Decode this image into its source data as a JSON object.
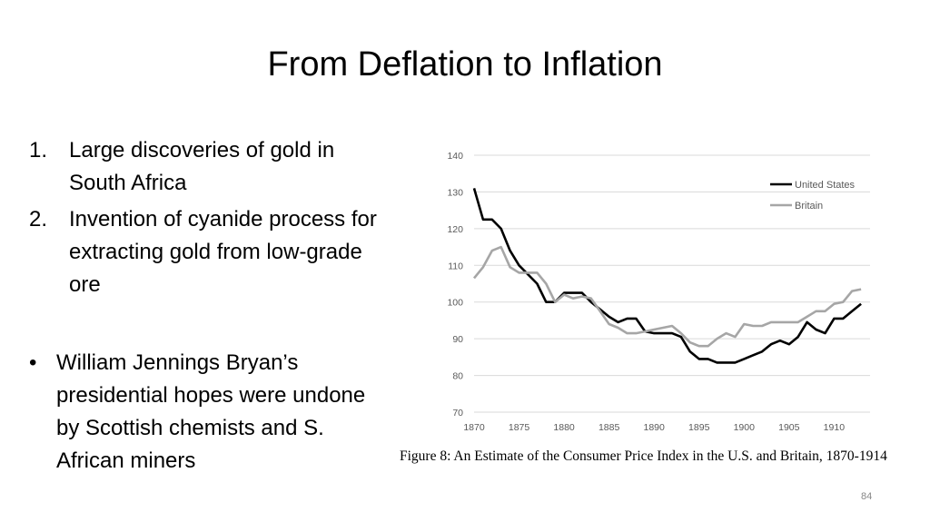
{
  "slide": {
    "title": "From Deflation to Inflation",
    "list": [
      {
        "num": "1.",
        "text": "Large discoveries of gold in South Africa"
      },
      {
        "num": "2.",
        "text": "Invention of cyanide process for extracting gold from low-grade ore"
      }
    ],
    "bullet": {
      "symbol": "•",
      "text": "William Jennings Bryan’s presidential hopes were undone by Scottish chemists and S. African miners"
    },
    "caption": "Figure 8:  An Estimate of the Consumer Price Index in the U.S. and Britain, 1870-1914",
    "page_number": "84"
  },
  "chart_data": {
    "type": "line",
    "title": "",
    "xlabel": "",
    "ylabel": "",
    "xlim": [
      1870,
      1914
    ],
    "ylim": [
      70,
      140
    ],
    "x_ticks": [
      1870,
      1875,
      1880,
      1885,
      1890,
      1895,
      1900,
      1905,
      1910
    ],
    "y_ticks": [
      70,
      80,
      90,
      100,
      110,
      120,
      130,
      140
    ],
    "grid": true,
    "legend_position": "top-right",
    "x": [
      1870,
      1871,
      1872,
      1873,
      1874,
      1875,
      1876,
      1877,
      1878,
      1879,
      1880,
      1881,
      1882,
      1883,
      1884,
      1885,
      1886,
      1887,
      1888,
      1889,
      1890,
      1891,
      1892,
      1893,
      1894,
      1895,
      1896,
      1897,
      1898,
      1899,
      1900,
      1901,
      1902,
      1903,
      1904,
      1905,
      1906,
      1907,
      1908,
      1909,
      1910,
      1911,
      1912,
      1913
    ],
    "series": [
      {
        "name": "United States",
        "color": "#000000",
        "values": [
          131,
          122.5,
          122.5,
          120,
          114,
          110,
          107.5,
          105,
          100,
          100,
          102.5,
          102.5,
          102.5,
          100,
          98,
          96,
          94.5,
          95.5,
          95.5,
          92,
          91.5,
          91.5,
          91.5,
          90.5,
          86.5,
          84.5,
          84.5,
          83.5,
          83.5,
          83.5,
          84.5,
          85.5,
          86.5,
          88.5,
          89.5,
          88.5,
          90.5,
          94.5,
          92.5,
          91.5,
          95.5,
          95.5,
          97.5,
          99.5
        ]
      },
      {
        "name": "Britain",
        "color": "#a6a6a6",
        "values": [
          106.5,
          109.5,
          114,
          115,
          109.5,
          108,
          108,
          108,
          105,
          100,
          102,
          101,
          101.5,
          101,
          97.5,
          94,
          93,
          91.5,
          91.5,
          92,
          92.5,
          93,
          93.5,
          91.5,
          89,
          88,
          88,
          90,
          91.5,
          90.5,
          94,
          93.5,
          93.5,
          94.5,
          94.5,
          94.5,
          94.5,
          96,
          97.5,
          97.5,
          99.5,
          100,
          103,
          103.5
        ]
      }
    ]
  }
}
